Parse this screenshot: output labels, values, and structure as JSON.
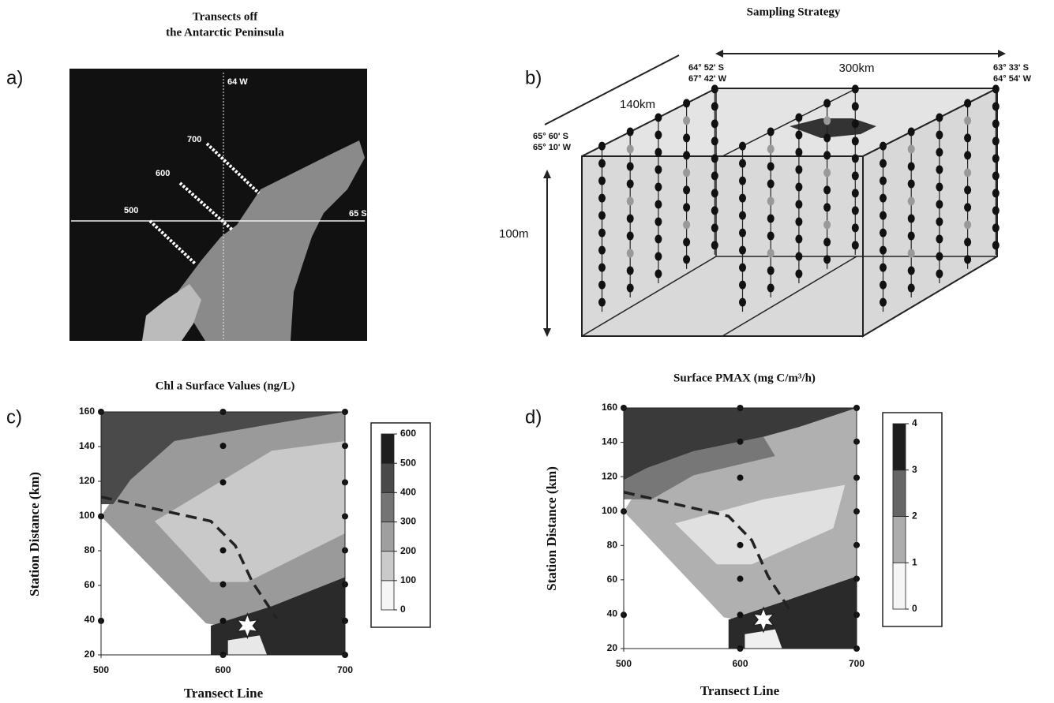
{
  "panel_a": {
    "letter": "a)",
    "title": [
      "Transects off",
      "the Antarctic Peninsula"
    ],
    "labels": {
      "longitude": "64 W",
      "latitude": "65 S",
      "transects": [
        "700",
        "600",
        "500"
      ]
    }
  },
  "panel_b": {
    "letter": "b)",
    "title": "Sampling Strategy",
    "length": "300km",
    "width": "140km",
    "depth": "100m",
    "corners": [
      [
        "64° 52' S",
        "67° 42' W"
      ],
      [
        "63° 33' S",
        "64° 54' W"
      ],
      [
        "65° 60' S",
        "65° 10' W"
      ]
    ]
  },
  "panel_c": {
    "letter": "c)",
    "title": "Chl a Surface Values (ng/L)",
    "y_label": "Station Distance (km)",
    "x_label": "Transect Line",
    "xlim": [
      500,
      700
    ],
    "xticks": [
      500,
      600,
      700
    ],
    "ylim": [
      20,
      160
    ],
    "yticks": [
      20,
      40,
      60,
      80,
      100,
      120,
      140,
      160
    ],
    "colorbar": {
      "lim": [
        0,
        600
      ],
      "ticks": [
        0,
        100,
        200,
        300,
        400,
        500,
        600
      ]
    }
  },
  "panel_d": {
    "letter": "d)",
    "title": "Surface PMAX (mg C/m³/h)",
    "y_label": "Station Distance (km)",
    "x_label": "Transect Line",
    "xlim": [
      500,
      700
    ],
    "xticks": [
      500,
      600,
      700
    ],
    "ylim": [
      20,
      160
    ],
    "yticks": [
      20,
      40,
      60,
      80,
      100,
      120,
      140,
      160
    ],
    "colorbar": {
      "lim": [
        0,
        4
      ],
      "ticks": [
        0,
        1,
        2,
        3,
        4
      ]
    }
  }
}
